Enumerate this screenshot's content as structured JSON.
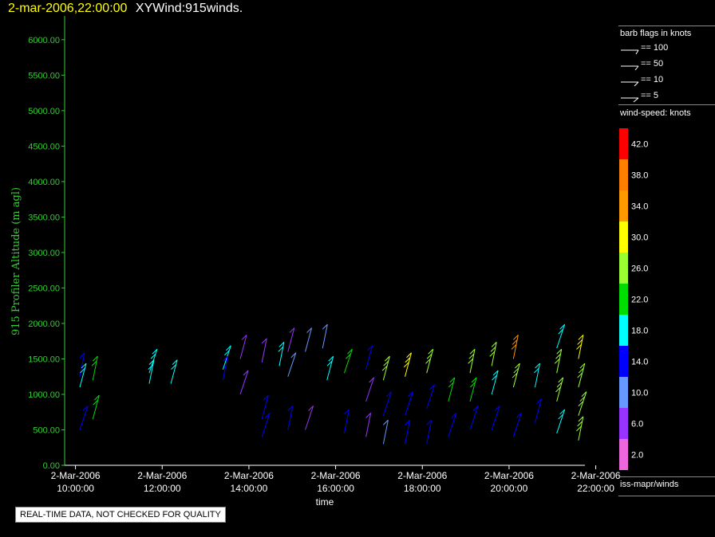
{
  "header": {
    "timestamp": "2-mar-2006,22:00:00",
    "product": "XYWind:915winds."
  },
  "legend": {
    "flags_title": "barb flags in knots",
    "flags": [
      {
        "label": "== 100",
        "knots": 100
      },
      {
        "label": "== 50",
        "knots": 50
      },
      {
        "label": "== 10",
        "knots": 10
      },
      {
        "label": "== 5",
        "knots": 5
      }
    ],
    "colorbar_title": "wind-speed: knots",
    "source": "iss-mapr/winds"
  },
  "notice": "REAL-TIME DATA, NOT CHECKED FOR QUALITY",
  "chart_data": {
    "type": "wind-barb time-height",
    "ylabel": "915 Profiler Altitude (m agl)",
    "xlabel": "time",
    "ylim": [
      0,
      6200
    ],
    "y_ticks": [
      "0.00",
      "500.00",
      "1000.00",
      "1500.00",
      "2000.00",
      "2500.00",
      "3000.00",
      "3500.00",
      "4000.00",
      "4500.00",
      "5000.00",
      "5500.00",
      "6000.00"
    ],
    "x_range_hours": [
      9.75,
      21.75
    ],
    "x_ticks": [
      {
        "date": "2-Mar-2006",
        "time": "10:00:00",
        "hour": 10
      },
      {
        "date": "2-Mar-2006",
        "time": "12:00:00",
        "hour": 12
      },
      {
        "date": "2-Mar-2006",
        "time": "14:00:00",
        "hour": 14
      },
      {
        "date": "2-Mar-2006",
        "time": "16:00:00",
        "hour": 16
      },
      {
        "date": "2-Mar-2006",
        "time": "18:00:00",
        "hour": 18
      },
      {
        "date": "2-Mar-2006",
        "time": "20:00:00",
        "hour": 20
      },
      {
        "date": "2-Mar-2006",
        "time": "22:00:00",
        "hour": 22
      }
    ],
    "colorbar": [
      {
        "label": "42.0",
        "color": "#ff0000"
      },
      {
        "label": "38.0",
        "color": "#ff7f00"
      },
      {
        "label": "34.0",
        "color": "#ff9900"
      },
      {
        "label": "30.0",
        "color": "#ffff00"
      },
      {
        "label": "26.0",
        "color": "#99ff33"
      },
      {
        "label": "22.0",
        "color": "#00dd00"
      },
      {
        "label": "18.0",
        "color": "#00ffff"
      },
      {
        "label": "14.0",
        "color": "#0000ff"
      },
      {
        "label": "10.0",
        "color": "#6699ff"
      },
      {
        "label": "6.0",
        "color": "#9933ff"
      },
      {
        "label": "2.0",
        "color": "#ee66dd"
      }
    ],
    "barbs": [
      {
        "hour": 10.1,
        "alt": 1250,
        "speed": 14
      },
      {
        "hour": 10.1,
        "alt": 1100,
        "speed": 18
      },
      {
        "hour": 10.1,
        "alt": 500,
        "speed": 14
      },
      {
        "hour": 10.4,
        "alt": 1200,
        "speed": 22
      },
      {
        "hour": 10.4,
        "alt": 650,
        "speed": 22
      },
      {
        "hour": 11.7,
        "alt": 1300,
        "speed": 18
      },
      {
        "hour": 11.7,
        "alt": 1150,
        "speed": 18
      },
      {
        "hour": 12.2,
        "alt": 1150,
        "speed": 18
      },
      {
        "hour": 13.4,
        "alt": 1350,
        "speed": 18
      },
      {
        "hour": 13.4,
        "alt": 1200,
        "speed": 14
      },
      {
        "hour": 13.8,
        "alt": 1500,
        "speed": 6
      },
      {
        "hour": 13.8,
        "alt": 1000,
        "speed": 6
      },
      {
        "hour": 14.3,
        "alt": 1450,
        "speed": 6
      },
      {
        "hour": 14.3,
        "alt": 650,
        "speed": 14
      },
      {
        "hour": 14.3,
        "alt": 400,
        "speed": 14
      },
      {
        "hour": 14.7,
        "alt": 1400,
        "speed": 18
      },
      {
        "hour": 14.9,
        "alt": 1600,
        "speed": 6
      },
      {
        "hour": 14.9,
        "alt": 1250,
        "speed": 10
      },
      {
        "hour": 14.9,
        "alt": 500,
        "speed": 14
      },
      {
        "hour": 15.3,
        "alt": 1600,
        "speed": 10
      },
      {
        "hour": 15.3,
        "alt": 500,
        "speed": 6
      },
      {
        "hour": 15.7,
        "alt": 1650,
        "speed": 10
      },
      {
        "hour": 15.8,
        "alt": 1200,
        "speed": 18
      },
      {
        "hour": 16.2,
        "alt": 1300,
        "speed": 22
      },
      {
        "hour": 16.2,
        "alt": 450,
        "speed": 14
      },
      {
        "hour": 16.7,
        "alt": 1350,
        "speed": 14
      },
      {
        "hour": 16.7,
        "alt": 900,
        "speed": 6
      },
      {
        "hour": 16.7,
        "alt": 400,
        "speed": 6
      },
      {
        "hour": 17.1,
        "alt": 1200,
        "speed": 26
      },
      {
        "hour": 17.1,
        "alt": 700,
        "speed": 14
      },
      {
        "hour": 17.1,
        "alt": 300,
        "speed": 10
      },
      {
        "hour": 17.6,
        "alt": 1250,
        "speed": 30
      },
      {
        "hour": 17.6,
        "alt": 700,
        "speed": 14
      },
      {
        "hour": 17.6,
        "alt": 300,
        "speed": 14
      },
      {
        "hour": 18.1,
        "alt": 1300,
        "speed": 26
      },
      {
        "hour": 18.1,
        "alt": 800,
        "speed": 14
      },
      {
        "hour": 18.1,
        "alt": 300,
        "speed": 14
      },
      {
        "hour": 18.6,
        "alt": 900,
        "speed": 22
      },
      {
        "hour": 18.6,
        "alt": 400,
        "speed": 14
      },
      {
        "hour": 19.1,
        "alt": 1300,
        "speed": 26
      },
      {
        "hour": 19.1,
        "alt": 900,
        "speed": 22
      },
      {
        "hour": 19.1,
        "alt": 500,
        "speed": 14
      },
      {
        "hour": 19.6,
        "alt": 1400,
        "speed": 26
      },
      {
        "hour": 19.6,
        "alt": 1000,
        "speed": 18
      },
      {
        "hour": 19.6,
        "alt": 500,
        "speed": 14
      },
      {
        "hour": 20.1,
        "alt": 1500,
        "speed": 34
      },
      {
        "hour": 20.1,
        "alt": 1100,
        "speed": 26
      },
      {
        "hour": 20.1,
        "alt": 400,
        "speed": 14
      },
      {
        "hour": 20.6,
        "alt": 1100,
        "speed": 18
      },
      {
        "hour": 20.6,
        "alt": 600,
        "speed": 14
      },
      {
        "hour": 21.1,
        "alt": 1650,
        "speed": 18
      },
      {
        "hour": 21.1,
        "alt": 1300,
        "speed": 26
      },
      {
        "hour": 21.1,
        "alt": 900,
        "speed": 26
      },
      {
        "hour": 21.1,
        "alt": 450,
        "speed": 18
      },
      {
        "hour": 21.6,
        "alt": 1500,
        "speed": 30
      },
      {
        "hour": 21.6,
        "alt": 1100,
        "speed": 26
      },
      {
        "hour": 21.6,
        "alt": 700,
        "speed": 26
      },
      {
        "hour": 21.6,
        "alt": 350,
        "speed": 26
      }
    ]
  }
}
